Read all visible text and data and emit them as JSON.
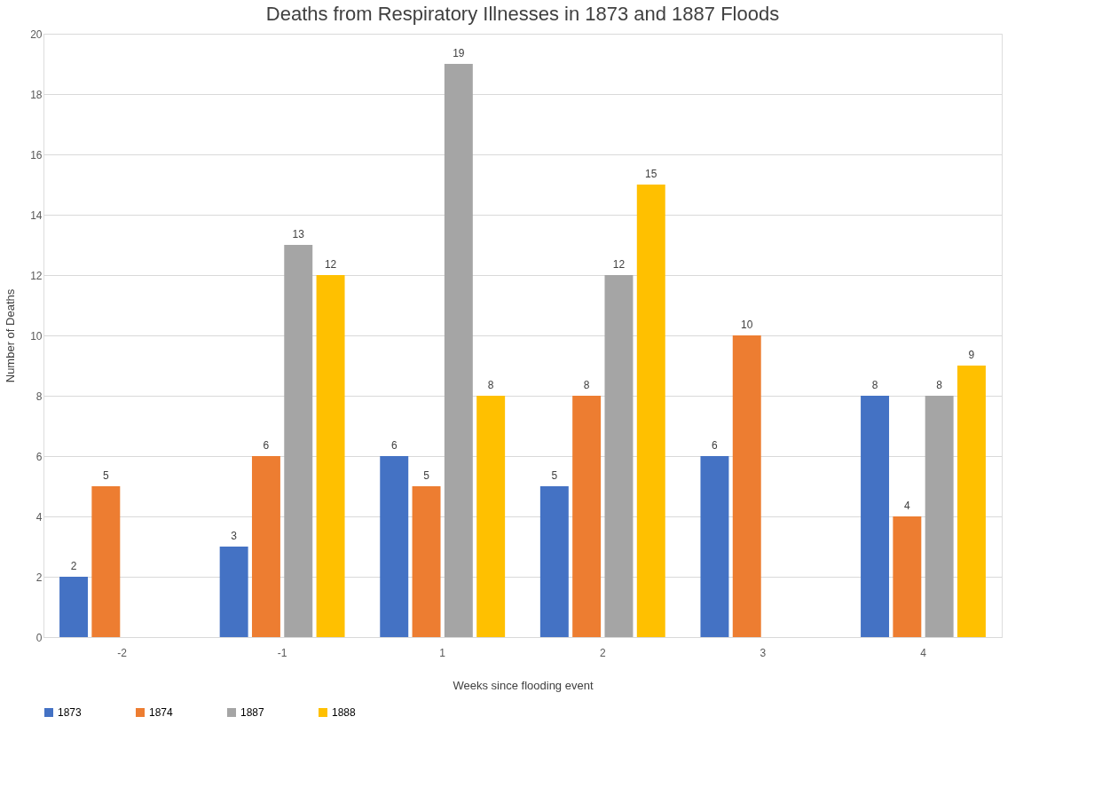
{
  "chart_data": {
    "type": "bar",
    "title": "Deaths from Respiratory Illnesses in 1873 and 1887 Floods",
    "xlabel": "Weeks since flooding event",
    "ylabel": "Number  of Deaths",
    "categories": [
      "-2",
      "-1",
      "1",
      "2",
      "3",
      "4"
    ],
    "series": [
      {
        "name": "1873",
        "color": "#4472c4",
        "values": [
          2,
          3,
          6,
          5,
          6,
          8
        ]
      },
      {
        "name": "1874",
        "color": "#ed7d31",
        "values": [
          5,
          6,
          5,
          8,
          10,
          4
        ]
      },
      {
        "name": "1887",
        "color": "#a5a5a5",
        "values": [
          null,
          13,
          19,
          12,
          null,
          8
        ]
      },
      {
        "name": "1888",
        "color": "#ffc000",
        "values": [
          null,
          12,
          8,
          15,
          null,
          9
        ]
      }
    ],
    "ylim": [
      0,
      20
    ],
    "yticks": [
      0,
      2,
      4,
      6,
      8,
      10,
      12,
      14,
      16,
      18,
      20
    ],
    "grid": "y",
    "legend": "bottom",
    "data_labels": true
  }
}
